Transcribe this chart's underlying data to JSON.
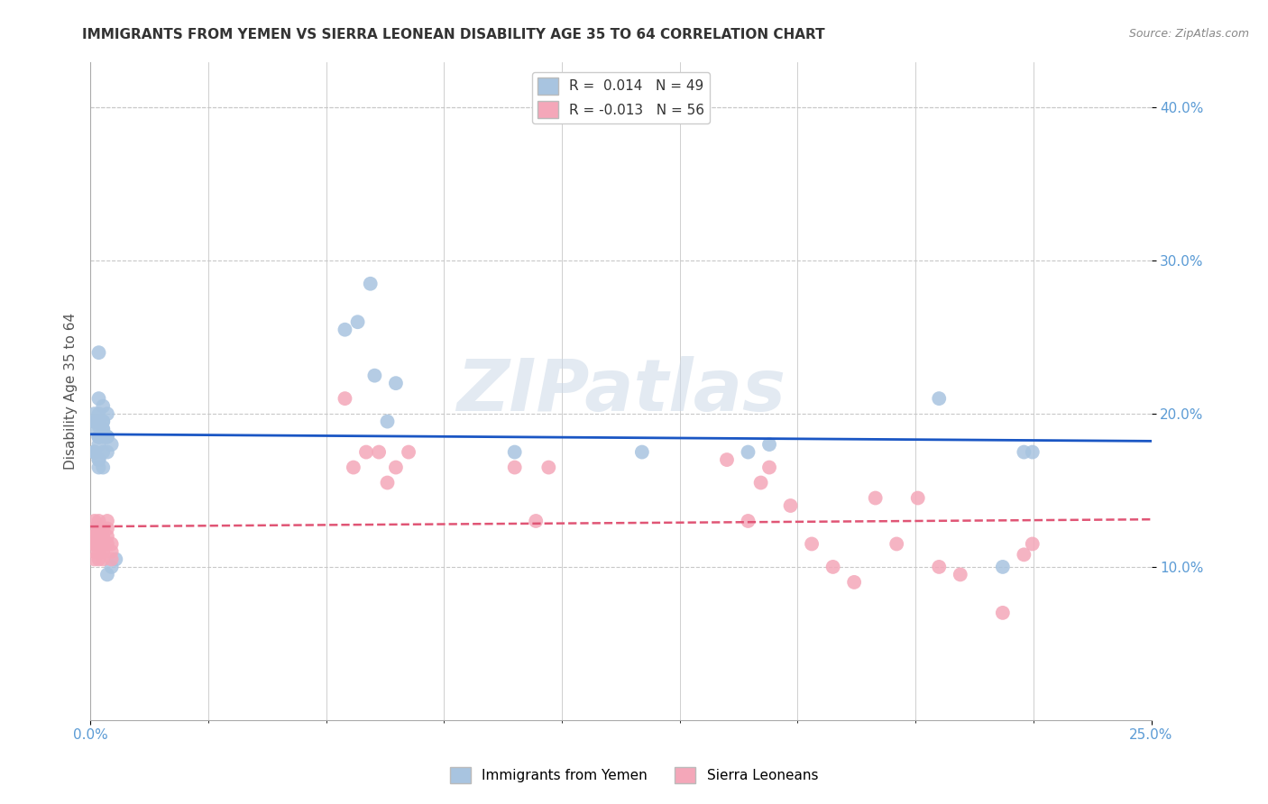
{
  "title": "IMMIGRANTS FROM YEMEN VS SIERRA LEONEAN DISABILITY AGE 35 TO 64 CORRELATION CHART",
  "source": "Source: ZipAtlas.com",
  "ylabel": "Disability Age 35 to 64",
  "ylabel_right_ticks": [
    "10.0%",
    "20.0%",
    "30.0%",
    "40.0%"
  ],
  "ylabel_right_vals": [
    0.1,
    0.2,
    0.3,
    0.4
  ],
  "xlim": [
    0.0,
    0.25
  ],
  "ylim": [
    0.0,
    0.43
  ],
  "watermark": "ZIPatlas",
  "blue_color": "#a8c4e0",
  "pink_color": "#f4a7b9",
  "trendline_blue_color": "#1a56c4",
  "trendline_pink_color": "#e05575",
  "background_color": "#ffffff",
  "grid_color": "#c8c8c8",
  "yemen_x": [
    0.001,
    0.002,
    0.001,
    0.002,
    0.001,
    0.002,
    0.003,
    0.002,
    0.003,
    0.004,
    0.003,
    0.002,
    0.001,
    0.002,
    0.003,
    0.002,
    0.004,
    0.003,
    0.002,
    0.001,
    0.003,
    0.002,
    0.001,
    0.002,
    0.001,
    0.002,
    0.003,
    0.004,
    0.002,
    0.003,
    0.004,
    0.005,
    0.004,
    0.005,
    0.006,
    0.06,
    0.063,
    0.066,
    0.067,
    0.07,
    0.072,
    0.1,
    0.13,
    0.155,
    0.16,
    0.2,
    0.215,
    0.22,
    0.222
  ],
  "yemen_y": [
    0.19,
    0.24,
    0.2,
    0.185,
    0.175,
    0.17,
    0.195,
    0.21,
    0.205,
    0.2,
    0.195,
    0.185,
    0.175,
    0.165,
    0.19,
    0.195,
    0.185,
    0.175,
    0.18,
    0.195,
    0.165,
    0.2,
    0.195,
    0.185,
    0.175,
    0.17,
    0.185,
    0.175,
    0.192,
    0.19,
    0.185,
    0.18,
    0.095,
    0.1,
    0.105,
    0.255,
    0.26,
    0.285,
    0.225,
    0.195,
    0.22,
    0.175,
    0.175,
    0.175,
    0.18,
    0.21,
    0.1,
    0.175,
    0.175
  ],
  "sierra_x": [
    0.001,
    0.001,
    0.001,
    0.001,
    0.001,
    0.001,
    0.001,
    0.001,
    0.002,
    0.002,
    0.002,
    0.002,
    0.002,
    0.002,
    0.002,
    0.002,
    0.002,
    0.003,
    0.003,
    0.003,
    0.003,
    0.003,
    0.003,
    0.004,
    0.004,
    0.004,
    0.004,
    0.005,
    0.005,
    0.005,
    0.06,
    0.062,
    0.065,
    0.068,
    0.07,
    0.072,
    0.075,
    0.1,
    0.105,
    0.108,
    0.15,
    0.155,
    0.158,
    0.16,
    0.165,
    0.17,
    0.175,
    0.18,
    0.185,
    0.19,
    0.195,
    0.2,
    0.205,
    0.215,
    0.22,
    0.222
  ],
  "sierra_y": [
    0.12,
    0.115,
    0.125,
    0.13,
    0.11,
    0.105,
    0.115,
    0.12,
    0.125,
    0.115,
    0.11,
    0.105,
    0.115,
    0.12,
    0.125,
    0.13,
    0.115,
    0.125,
    0.12,
    0.115,
    0.11,
    0.105,
    0.115,
    0.12,
    0.125,
    0.13,
    0.115,
    0.11,
    0.105,
    0.115,
    0.21,
    0.165,
    0.175,
    0.175,
    0.155,
    0.165,
    0.175,
    0.165,
    0.13,
    0.165,
    0.17,
    0.13,
    0.155,
    0.165,
    0.14,
    0.115,
    0.1,
    0.09,
    0.145,
    0.115,
    0.145,
    0.1,
    0.095,
    0.07,
    0.108,
    0.115
  ]
}
